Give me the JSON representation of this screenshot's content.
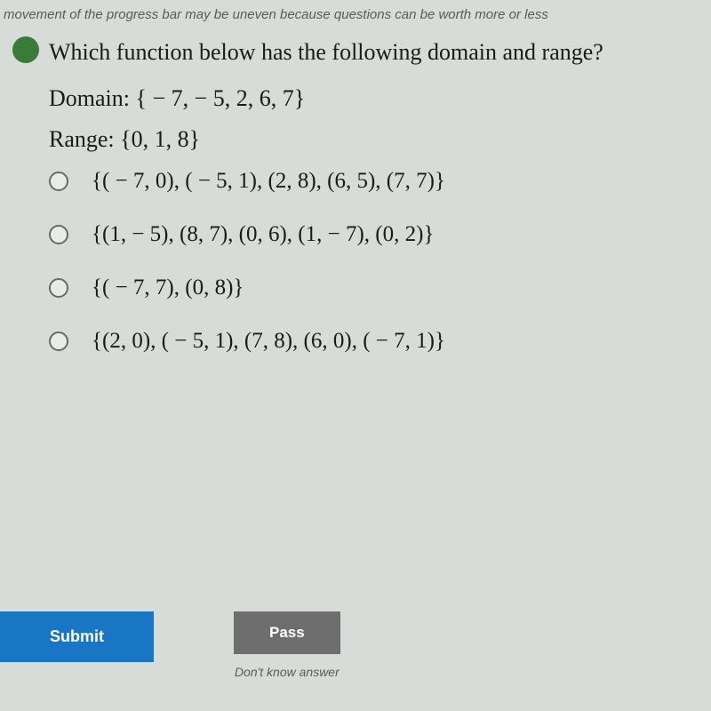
{
  "top_note": "movement of the progress bar may be uneven because questions can be worth more or less",
  "question": "Which function below has the following domain and range?",
  "domain_label": "Domain: { − 7,  − 5, 2, 6, 7}",
  "range_label": "Range: {0, 1, 8}",
  "options": [
    "{( − 7, 0), ( − 5, 1), (2, 8), (6, 5), (7, 7)}",
    "{(1,  − 5), (8, 7), (0, 6), (1,  − 7), (0, 2)}",
    "{( − 7, 7), (0, 8)}",
    "{(2, 0), ( − 5, 1), (7, 8), (6, 0), ( − 7, 1)}"
  ],
  "buttons": {
    "submit": "Submit",
    "pass": "Pass",
    "pass_note": "Don't know answer"
  },
  "colors": {
    "page_bg": "#d8dcd8",
    "submit_bg": "#1976c5",
    "pass_bg": "#6e6e6e",
    "marker_bg": "#3a7a3a",
    "text": "#1a1a1a",
    "muted": "#5a5a5a"
  }
}
